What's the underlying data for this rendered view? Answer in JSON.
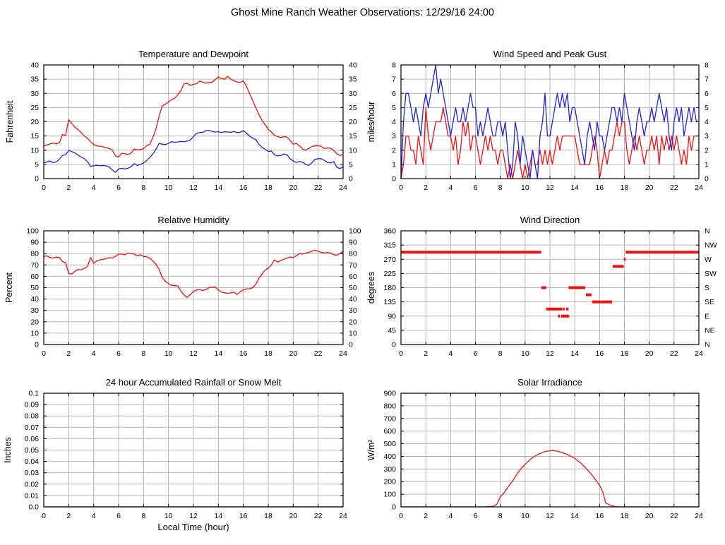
{
  "page_title": "Ghost Mine Ranch Weather Observations: 12/29/16 24:00",
  "colors": {
    "red": "#ee1111",
    "blue": "#2222dd",
    "grid": "#b6b6b6",
    "border": "#000000",
    "background": "#ffffff"
  },
  "chart_data": [
    {
      "id": "temperature",
      "type": "line",
      "title": "Temperature and Dewpoint",
      "ylabel": "Fahrenheit",
      "xlim": [
        0,
        24
      ],
      "ylim": [
        0,
        40
      ],
      "xtick_vals": [
        0,
        2,
        4,
        6,
        8,
        10,
        12,
        14,
        16,
        18,
        20,
        22,
        24
      ],
      "xtick_labels": [
        "0",
        "2",
        "4",
        "6",
        "8",
        "10",
        "12",
        "14",
        "16",
        "18",
        "20",
        "22",
        "24"
      ],
      "ytick_vals": [
        0,
        5,
        10,
        15,
        20,
        25,
        30,
        35,
        40
      ],
      "ytick_labels": [
        "0",
        "5",
        "10",
        "15",
        "20",
        "25",
        "30",
        "35",
        "40"
      ],
      "right_tick_labels": [
        "0",
        "5",
        "10",
        "15",
        "20",
        "25",
        "30",
        "35",
        "40"
      ],
      "grid": true,
      "series": [
        {
          "name": "Temperature",
          "color": "red",
          "x0": 0,
          "dx": 0.25,
          "y": [
            11.5,
            11.8,
            12.2,
            12.5,
            12.2,
            12.6,
            15.5,
            15.2,
            20.8,
            19.4,
            18.0,
            17.3,
            16.2,
            15.0,
            14.2,
            13.0,
            12.0,
            11.5,
            11.4,
            11.2,
            10.9,
            10.6,
            10.0,
            8.0,
            7.6,
            8.9,
            8.8,
            8.5,
            9.0,
            10.4,
            10.1,
            10.2,
            10.5,
            11.6,
            12.1,
            14.5,
            17.5,
            22.0,
            25.6,
            26.2,
            27.0,
            27.8,
            28.3,
            29.5,
            31.0,
            33.4,
            33.6,
            32.8,
            33.2,
            33.4,
            34.3,
            34.0,
            33.6,
            33.8,
            34.0,
            34.8,
            35.8,
            35.2,
            35.0,
            36.0,
            35.0,
            34.4,
            34.0,
            33.9,
            34.4,
            32.5,
            30.0,
            27.5,
            25.0,
            22.5,
            20.5,
            19.0,
            17.4,
            16.4,
            15.2,
            14.8,
            14.4,
            14.8,
            14.6,
            13.5,
            12.1,
            12.4,
            11.6,
            10.4,
            10.0,
            10.6,
            11.3,
            11.5,
            11.6,
            11.3,
            10.6,
            10.8,
            10.7,
            9.9,
            8.7,
            8.1,
            8.5
          ]
        },
        {
          "name": "Dewpoint",
          "color": "blue",
          "x0": 0,
          "dx": 0.25,
          "y": [
            5.5,
            5.9,
            6.2,
            5.6,
            5.9,
            6.8,
            8.2,
            8.4,
            9.9,
            9.5,
            9.0,
            8.3,
            7.6,
            7.0,
            6.0,
            4.3,
            4.5,
            4.7,
            4.5,
            4.6,
            4.5,
            4.1,
            3.0,
            2.2,
            3.4,
            3.6,
            3.4,
            3.6,
            4.2,
            5.3,
            4.6,
            5.0,
            5.5,
            6.4,
            7.4,
            8.7,
            10.3,
            12.4,
            12.1,
            12.0,
            12.4,
            13.0,
            12.8,
            12.9,
            13.1,
            13.0,
            13.2,
            13.6,
            14.8,
            15.9,
            16.2,
            16.3,
            16.9,
            17.0,
            16.6,
            16.4,
            16.5,
            16.2,
            16.5,
            16.4,
            16.3,
            16.6,
            16.2,
            16.3,
            16.9,
            16.0,
            15.0,
            14.2,
            13.8,
            12.1,
            11.0,
            10.3,
            9.6,
            9.7,
            8.4,
            8.0,
            8.1,
            8.7,
            8.4,
            7.0,
            6.2,
            5.7,
            6.0,
            5.8,
            5.0,
            4.7,
            5.6,
            6.8,
            7.0,
            7.0,
            6.4,
            5.7,
            5.5,
            6.0,
            4.0,
            3.5,
            4.2
          ]
        }
      ]
    },
    {
      "id": "wind_speed",
      "type": "line",
      "title": "Wind Speed and Peak Gust",
      "ylabel": "miles/hour",
      "xlim": [
        0,
        24
      ],
      "ylim": [
        0,
        8
      ],
      "xtick_vals": [
        0,
        2,
        4,
        6,
        8,
        10,
        12,
        14,
        16,
        18,
        20,
        22,
        24
      ],
      "xtick_labels": [
        "0",
        "2",
        "4",
        "6",
        "8",
        "10",
        "12",
        "14",
        "16",
        "18",
        "20",
        "22",
        "24"
      ],
      "ytick_vals": [
        0,
        1,
        2,
        3,
        4,
        5,
        6,
        7,
        8
      ],
      "ytick_labels": [
        "0",
        "1",
        "2",
        "3",
        "4",
        "5",
        "6",
        "7",
        "8"
      ],
      "right_tick_labels": [
        "0",
        "1",
        "2",
        "3",
        "4",
        "5",
        "6",
        "7",
        "8"
      ],
      "grid": true,
      "series": [
        {
          "name": "Wind Speed",
          "color": "red",
          "x0": 0,
          "dx": 0.2,
          "y": [
            0,
            1,
            3,
            3,
            2,
            2,
            1,
            3,
            2,
            1,
            5,
            3,
            2,
            3,
            4,
            4,
            4,
            5,
            4,
            3,
            3,
            2,
            3,
            1,
            2,
            4,
            3,
            4,
            2,
            3,
            3,
            2,
            1,
            2,
            3,
            2,
            3,
            2,
            2,
            1,
            2,
            2,
            1,
            0,
            1,
            0,
            1,
            2,
            1,
            0,
            1,
            0,
            1,
            2,
            1,
            1,
            2,
            1,
            2,
            1,
            2,
            1,
            2,
            3,
            2,
            3,
            3,
            3,
            3,
            3,
            3,
            2,
            1,
            1,
            1,
            1,
            1,
            2,
            3,
            2,
            0,
            1,
            2,
            1,
            2,
            2,
            3,
            4,
            3,
            4,
            4,
            2,
            1,
            2,
            3,
            2,
            3,
            2,
            1,
            2,
            2,
            3,
            2,
            3,
            1,
            3,
            2,
            3,
            2,
            3,
            2,
            3,
            2,
            1,
            2,
            1,
            3,
            2,
            3,
            3,
            3
          ]
        },
        {
          "name": "Peak Gust",
          "color": "blue",
          "x0": 0,
          "dx": 0.2,
          "y": [
            0,
            4,
            6,
            6,
            5,
            4,
            5,
            4,
            3,
            5,
            6,
            5,
            6,
            7,
            8,
            6,
            7,
            6,
            5,
            4,
            3,
            4,
            5,
            4,
            4,
            5,
            4,
            5,
            6,
            5,
            5,
            3,
            4,
            3,
            4,
            5,
            4,
            3,
            3,
            4,
            4,
            3,
            4,
            2,
            0,
            1,
            4,
            3,
            1,
            3,
            2,
            1,
            0,
            2,
            1,
            0,
            3,
            4,
            6,
            3,
            3,
            4,
            5,
            6,
            5,
            6,
            5,
            6,
            4,
            5,
            5,
            4,
            3,
            2,
            1,
            3,
            4,
            3,
            2,
            4,
            3,
            3,
            2,
            3,
            4,
            5,
            5,
            4,
            5,
            4,
            6,
            5,
            4,
            3,
            2,
            4,
            5,
            4,
            3,
            4,
            4,
            5,
            4,
            5,
            6,
            5,
            4,
            5,
            3,
            2,
            4,
            5,
            4,
            5,
            3,
            4,
            5,
            4,
            5,
            4,
            4
          ]
        }
      ]
    },
    {
      "id": "humidity",
      "type": "line",
      "title": "Relative Humidity",
      "ylabel": "Percent",
      "xlim": [
        0,
        24
      ],
      "ylim": [
        0,
        100
      ],
      "xtick_vals": [
        0,
        2,
        4,
        6,
        8,
        10,
        12,
        14,
        16,
        18,
        20,
        22,
        24
      ],
      "xtick_labels": [
        "0",
        "2",
        "4",
        "6",
        "8",
        "10",
        "12",
        "14",
        "16",
        "18",
        "20",
        "22",
        "24"
      ],
      "ytick_vals": [
        0,
        10,
        20,
        30,
        40,
        50,
        60,
        70,
        80,
        90,
        100
      ],
      "ytick_labels": [
        "0",
        "10",
        "20",
        "30",
        "40",
        "50",
        "60",
        "70",
        "80",
        "90",
        "100"
      ],
      "right_tick_labels": [
        "0",
        "10",
        "20",
        "30",
        "40",
        "50",
        "60",
        "70",
        "80",
        "90",
        "100"
      ],
      "grid": true,
      "series": [
        {
          "name": "Relative Humidity",
          "color": "red",
          "x0": 0,
          "dx": 0.25,
          "y": [
            77.5,
            78,
            76.5,
            76,
            77,
            76.5,
            73,
            72,
            62.5,
            62,
            64.5,
            66,
            65.5,
            67,
            68.5,
            76.5,
            71.5,
            73.5,
            74.5,
            75,
            75.5,
            76.5,
            76,
            77.5,
            79.5,
            79.5,
            79,
            80.5,
            80,
            79.5,
            78,
            79,
            77.5,
            77,
            76,
            73.5,
            70.5,
            66,
            59,
            55.5,
            53.5,
            52,
            52,
            51.5,
            47,
            43.5,
            41.5,
            44,
            46.5,
            48,
            48.5,
            47.5,
            48.5,
            50,
            50.5,
            50.5,
            48,
            46,
            45.5,
            45,
            45.5,
            46,
            44,
            46.5,
            48,
            49,
            49,
            50,
            53,
            58,
            62,
            65.5,
            67,
            70,
            74.5,
            72.5,
            74,
            75,
            76,
            77,
            76.5,
            78,
            80,
            79.5,
            80.5,
            81,
            82,
            83,
            82,
            81,
            80.5,
            81,
            80.5,
            79,
            78.5,
            80,
            82
          ]
        }
      ]
    },
    {
      "id": "wind_direction",
      "type": "segments",
      "title": "Wind Direction",
      "ylabel": "degrees",
      "xlim": [
        0,
        24
      ],
      "ylim": [
        0,
        360
      ],
      "xtick_vals": [
        0,
        2,
        4,
        6,
        8,
        10,
        12,
        14,
        16,
        18,
        20,
        22,
        24
      ],
      "xtick_labels": [
        "0",
        "2",
        "4",
        "6",
        "8",
        "10",
        "12",
        "14",
        "16",
        "18",
        "20",
        "22",
        "24"
      ],
      "ytick_vals": [
        0,
        45,
        90,
        135,
        180,
        225,
        270,
        315,
        360
      ],
      "ytick_labels": [
        "0",
        "45",
        "90",
        "135",
        "180",
        "225",
        "270",
        "315",
        "360"
      ],
      "right_tick_labels": [
        "N",
        "NE",
        "E",
        "SE",
        "S",
        "SW",
        "W",
        "NW",
        "N"
      ],
      "grid": true,
      "segments": [
        {
          "x1": 0,
          "x2": 11.3,
          "deg": 292.5
        },
        {
          "x1": 11.3,
          "x2": 11.7,
          "deg": 180
        },
        {
          "x1": 11.7,
          "x2": 13.0,
          "deg": 112.5
        },
        {
          "x1": 12.65,
          "x2": 12.8,
          "deg": 90
        },
        {
          "x1": 12.9,
          "x2": 13.55,
          "deg": 90
        },
        {
          "x1": 13.05,
          "x2": 13.2,
          "deg": 112.5
        },
        {
          "x1": 13.3,
          "x2": 13.5,
          "deg": 112.5
        },
        {
          "x1": 13.5,
          "x2": 14.85,
          "deg": 180
        },
        {
          "x1": 14.9,
          "x2": 15.35,
          "deg": 157.5
        },
        {
          "x1": 15.4,
          "x2": 17.0,
          "deg": 135
        },
        {
          "x1": 17.05,
          "x2": 17.95,
          "deg": 247.5
        },
        {
          "x1": 17.95,
          "x2": 18.1,
          "deg": 270
        },
        {
          "x1": 18.1,
          "x2": 24,
          "deg": 292.5
        }
      ]
    },
    {
      "id": "rainfall",
      "type": "line",
      "title": "24 hour Accumulated Rainfall or Snow Melt",
      "ylabel": "Inches",
      "xlabel": "Local Time (hour)",
      "xlim": [
        0,
        24
      ],
      "ylim": [
        0,
        0.1
      ],
      "xtick_vals": [
        0,
        2,
        4,
        6,
        8,
        10,
        12,
        14,
        16,
        18,
        20,
        22,
        24
      ],
      "xtick_labels": [
        "0",
        "2",
        "4",
        "6",
        "8",
        "10",
        "12",
        "14",
        "16",
        "18",
        "20",
        "22",
        "24"
      ],
      "ytick_vals": [
        0,
        0.01,
        0.02,
        0.03,
        0.04,
        0.05,
        0.06,
        0.07,
        0.08,
        0.09,
        0.1
      ],
      "ytick_labels": [
        "0.0",
        "0.01",
        "0.02",
        "0.03",
        "0.04",
        "0.05",
        "0.06",
        "0.07",
        "0.08",
        "0.09",
        "0.1"
      ],
      "grid": true,
      "series": [
        {
          "name": "Accumulated Rainfall",
          "color": "red",
          "x0": 0,
          "dx": 24,
          "y": [
            0,
            0
          ]
        }
      ]
    },
    {
      "id": "solar",
      "type": "line",
      "title": "Solar Irradiance",
      "ylabel": "W/m²",
      "xlim": [
        0,
        24
      ],
      "ylim": [
        0,
        900
      ],
      "xtick_vals": [
        0,
        2,
        4,
        6,
        8,
        10,
        12,
        14,
        16,
        18,
        20,
        22,
        24
      ],
      "xtick_labels": [
        "0",
        "2",
        "4",
        "6",
        "8",
        "10",
        "12",
        "14",
        "16",
        "18",
        "20",
        "22",
        "24"
      ],
      "ytick_vals": [
        0,
        100,
        200,
        300,
        400,
        500,
        600,
        700,
        800,
        900
      ],
      "ytick_labels": [
        "0",
        "100",
        "200",
        "300",
        "400",
        "500",
        "600",
        "700",
        "800",
        "900"
      ],
      "grid": true,
      "series": [
        {
          "name": "Solar Irradiance",
          "color": "red",
          "x0": 0,
          "dx": 0.25,
          "y": [
            0,
            0,
            0,
            0,
            0,
            0,
            0,
            0,
            0,
            0,
            0,
            0,
            0,
            0,
            0,
            0,
            0,
            0,
            0,
            0,
            0,
            0,
            0,
            0,
            0,
            0,
            0,
            0,
            2,
            3,
            8,
            25,
            80,
            105,
            140,
            175,
            205,
            245,
            280,
            310,
            335,
            360,
            382,
            400,
            412,
            425,
            435,
            441,
            444,
            446,
            442,
            437,
            430,
            420,
            410,
            398,
            385,
            365,
            345,
            322,
            295,
            268,
            238,
            205,
            170,
            120,
            30,
            18,
            8,
            3,
            1,
            0,
            0,
            0,
            0,
            0,
            0,
            0,
            0,
            0,
            0,
            0,
            0,
            0,
            0,
            0,
            0,
            0,
            0,
            0,
            0,
            0,
            0,
            0,
            0,
            0,
            0
          ]
        }
      ]
    }
  ]
}
